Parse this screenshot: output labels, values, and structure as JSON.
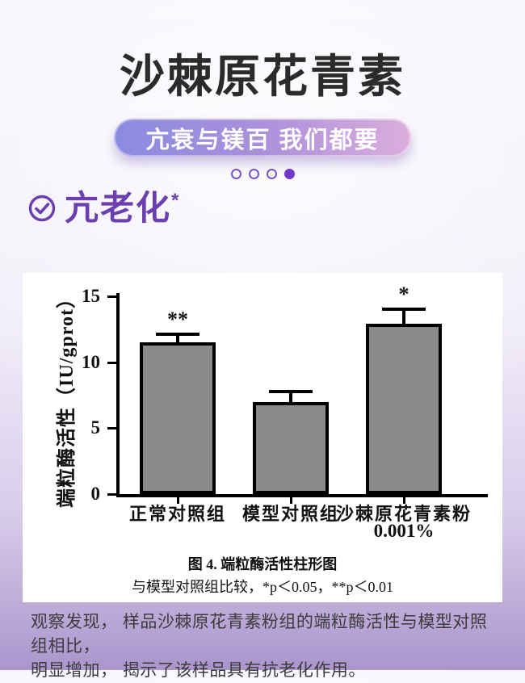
{
  "page": {
    "title": "沙棘原花青素",
    "banner": "亢衰与镁百 我们都要"
  },
  "pagination": {
    "dots": [
      false,
      false,
      false,
      true
    ]
  },
  "section": {
    "label": "亢老化",
    "superscript": "*",
    "accent_color": "#6a3fb0"
  },
  "chart_data": {
    "type": "bar",
    "title": "图 4. 端粒酶活性柱形图",
    "note": "与模型对照组比较，*p＜0.05，**p＜0.01",
    "ylabel": "端粒酶活性（IU/gprot）",
    "ylim": [
      0,
      15
    ],
    "yticks": [
      0,
      5,
      10,
      15
    ],
    "categories": [
      "正常对照组",
      "模型对照组",
      "沙棘原花青素粉"
    ],
    "category_sublabels": [
      "",
      "",
      "0.001%"
    ],
    "values": [
      11.5,
      7.0,
      12.9
    ],
    "errors": [
      0.6,
      0.75,
      1.1
    ],
    "annotations": [
      "**",
      "",
      "*"
    ],
    "bar_color": "#8a8a8a",
    "bar_border_color": "#000000",
    "grid": false,
    "legend": false
  },
  "footer": {
    "line1": "观察发现， 样品沙棘原花青素粉组的端粒酶活性与模型对照组相比，",
    "line2": "明显增加， 揭示了该样品具有抗老化作用。"
  }
}
